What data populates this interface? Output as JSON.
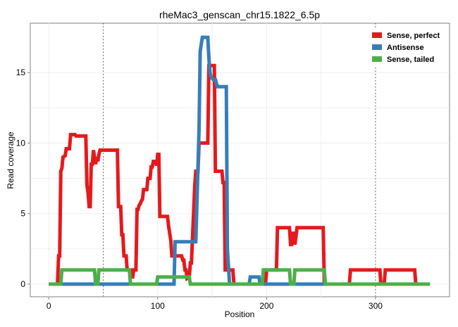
{
  "chart_data": {
    "type": "line",
    "title": "rheMac3_genscan_chr15.1822_6.5p",
    "xlabel": "Position",
    "ylabel": "Read coverage",
    "xlim": [
      -17,
      368
    ],
    "ylim": [
      -0.9,
      18.5
    ],
    "x_ticks": [
      0,
      100,
      200,
      300
    ],
    "y_ticks": [
      0,
      5,
      10,
      15
    ],
    "grid": true,
    "legend_position": "top-right",
    "vlines": [
      50,
      300
    ],
    "series": [
      {
        "name": "Sense, perfect",
        "color": "#E41A1C",
        "points": [
          [
            0,
            0
          ],
          [
            8,
            0
          ],
          [
            9,
            2
          ],
          [
            10,
            2
          ],
          [
            11,
            8
          ],
          [
            12,
            8.2
          ],
          [
            13,
            9
          ],
          [
            15,
            9.1
          ],
          [
            16,
            9.6
          ],
          [
            19,
            9.6
          ],
          [
            20,
            10.6
          ],
          [
            24,
            10.6
          ],
          [
            25,
            10.5
          ],
          [
            34,
            10.5
          ],
          [
            35,
            7
          ],
          [
            36,
            6.5
          ],
          [
            37,
            5.5
          ],
          [
            38,
            5.5
          ],
          [
            39,
            8.5
          ],
          [
            40,
            8.5
          ],
          [
            41,
            9.5
          ],
          [
            42,
            9
          ],
          [
            43,
            8.5
          ],
          [
            44,
            9
          ],
          [
            45,
            8.7
          ],
          [
            46,
            9.2
          ],
          [
            47,
            9.5
          ],
          [
            63,
            9.5
          ],
          [
            64,
            5.5
          ],
          [
            66,
            5.5
          ],
          [
            67,
            3.5
          ],
          [
            68,
            3.5
          ],
          [
            69,
            2
          ],
          [
            71,
            2
          ],
          [
            72,
            1
          ],
          [
            75,
            1
          ],
          [
            76,
            0.5
          ],
          [
            77,
            0.5
          ],
          [
            78,
            1
          ],
          [
            80,
            1
          ],
          [
            81,
            5.3
          ],
          [
            82,
            5.3
          ],
          [
            83,
            5.6
          ],
          [
            84,
            5.7
          ],
          [
            85,
            5.9
          ],
          [
            86,
            6
          ],
          [
            87,
            6.7
          ],
          [
            90,
            6.7
          ],
          [
            91,
            7.5
          ],
          [
            93,
            7.5
          ],
          [
            94,
            8.3
          ],
          [
            95,
            8.3
          ],
          [
            96,
            8.7
          ],
          [
            97,
            8.7
          ],
          [
            98,
            8.7
          ],
          [
            99,
            8.4
          ],
          [
            100,
            9.2
          ],
          [
            101,
            9.2
          ],
          [
            102,
            4.8
          ],
          [
            109,
            4.8
          ],
          [
            110,
            4.1
          ],
          [
            111,
            3.6
          ],
          [
            112,
            3.1
          ],
          [
            113,
            2
          ],
          [
            122,
            2
          ],
          [
            123,
            1.7
          ],
          [
            124,
            1.7
          ],
          [
            125,
            1
          ],
          [
            126,
            1
          ],
          [
            127,
            0.4
          ],
          [
            129,
            0.5
          ],
          [
            130,
            1.5
          ],
          [
            131,
            1.5
          ],
          [
            134,
            7
          ],
          [
            135,
            8
          ],
          [
            137,
            8
          ],
          [
            138,
            10
          ],
          [
            146,
            10
          ],
          [
            147,
            15.5
          ],
          [
            152,
            15.5
          ],
          [
            153,
            8
          ],
          [
            159,
            8
          ],
          [
            160,
            7.2
          ],
          [
            161,
            7.2
          ],
          [
            162,
            1
          ],
          [
            169,
            1
          ],
          [
            170,
            0
          ],
          [
            199,
            0
          ],
          [
            200,
            1
          ],
          [
            209,
            1
          ],
          [
            210,
            4
          ],
          [
            221,
            4
          ],
          [
            222,
            2.8
          ],
          [
            223,
            2.8
          ],
          [
            224,
            3.6
          ],
          [
            225,
            3.6
          ],
          [
            226,
            2.8
          ],
          [
            227,
            3.4
          ],
          [
            228,
            4
          ],
          [
            252,
            4
          ],
          [
            253,
            0
          ],
          [
            276,
            0
          ],
          [
            277,
            1
          ],
          [
            304,
            1
          ],
          [
            305,
            0
          ],
          [
            308,
            0
          ],
          [
            309,
            1
          ],
          [
            336,
            1
          ],
          [
            337,
            0
          ],
          [
            350,
            0
          ]
        ]
      },
      {
        "name": "Antisense",
        "color": "#377EB8",
        "points": [
          [
            0,
            0
          ],
          [
            115,
            0
          ],
          [
            116,
            3
          ],
          [
            134,
            3
          ],
          [
            135,
            3
          ],
          [
            138,
            11
          ],
          [
            139,
            16.5
          ],
          [
            140,
            17
          ],
          [
            141,
            17.5
          ],
          [
            146,
            17.5
          ],
          [
            147,
            16
          ],
          [
            148,
            15
          ],
          [
            149,
            14.7
          ],
          [
            150,
            14.6
          ],
          [
            151,
            14.5
          ],
          [
            152,
            14.5
          ],
          [
            153,
            14.5
          ],
          [
            154,
            14.2
          ],
          [
            155,
            14
          ],
          [
            163,
            14
          ],
          [
            164,
            2.5
          ],
          [
            165,
            1.2
          ],
          [
            166,
            0
          ],
          [
            184,
            0
          ],
          [
            185,
            0.5
          ],
          [
            193,
            0.5
          ],
          [
            194,
            0
          ],
          [
            350,
            0
          ]
        ]
      },
      {
        "name": "Sense, tailed",
        "color": "#4DAF4A",
        "points": [
          [
            0,
            0
          ],
          [
            11,
            0
          ],
          [
            12,
            1
          ],
          [
            42,
            1
          ],
          [
            43,
            0
          ],
          [
            45,
            0
          ],
          [
            46,
            1
          ],
          [
            74,
            1
          ],
          [
            75,
            0
          ],
          [
            99,
            0
          ],
          [
            100,
            0.5
          ],
          [
            129,
            0.5
          ],
          [
            130,
            0
          ],
          [
            196,
            0
          ],
          [
            197,
            1
          ],
          [
            221,
            1
          ],
          [
            222,
            0
          ],
          [
            225,
            0
          ],
          [
            226,
            1
          ],
          [
            253,
            1
          ],
          [
            254,
            0
          ],
          [
            350,
            0
          ]
        ]
      }
    ]
  }
}
